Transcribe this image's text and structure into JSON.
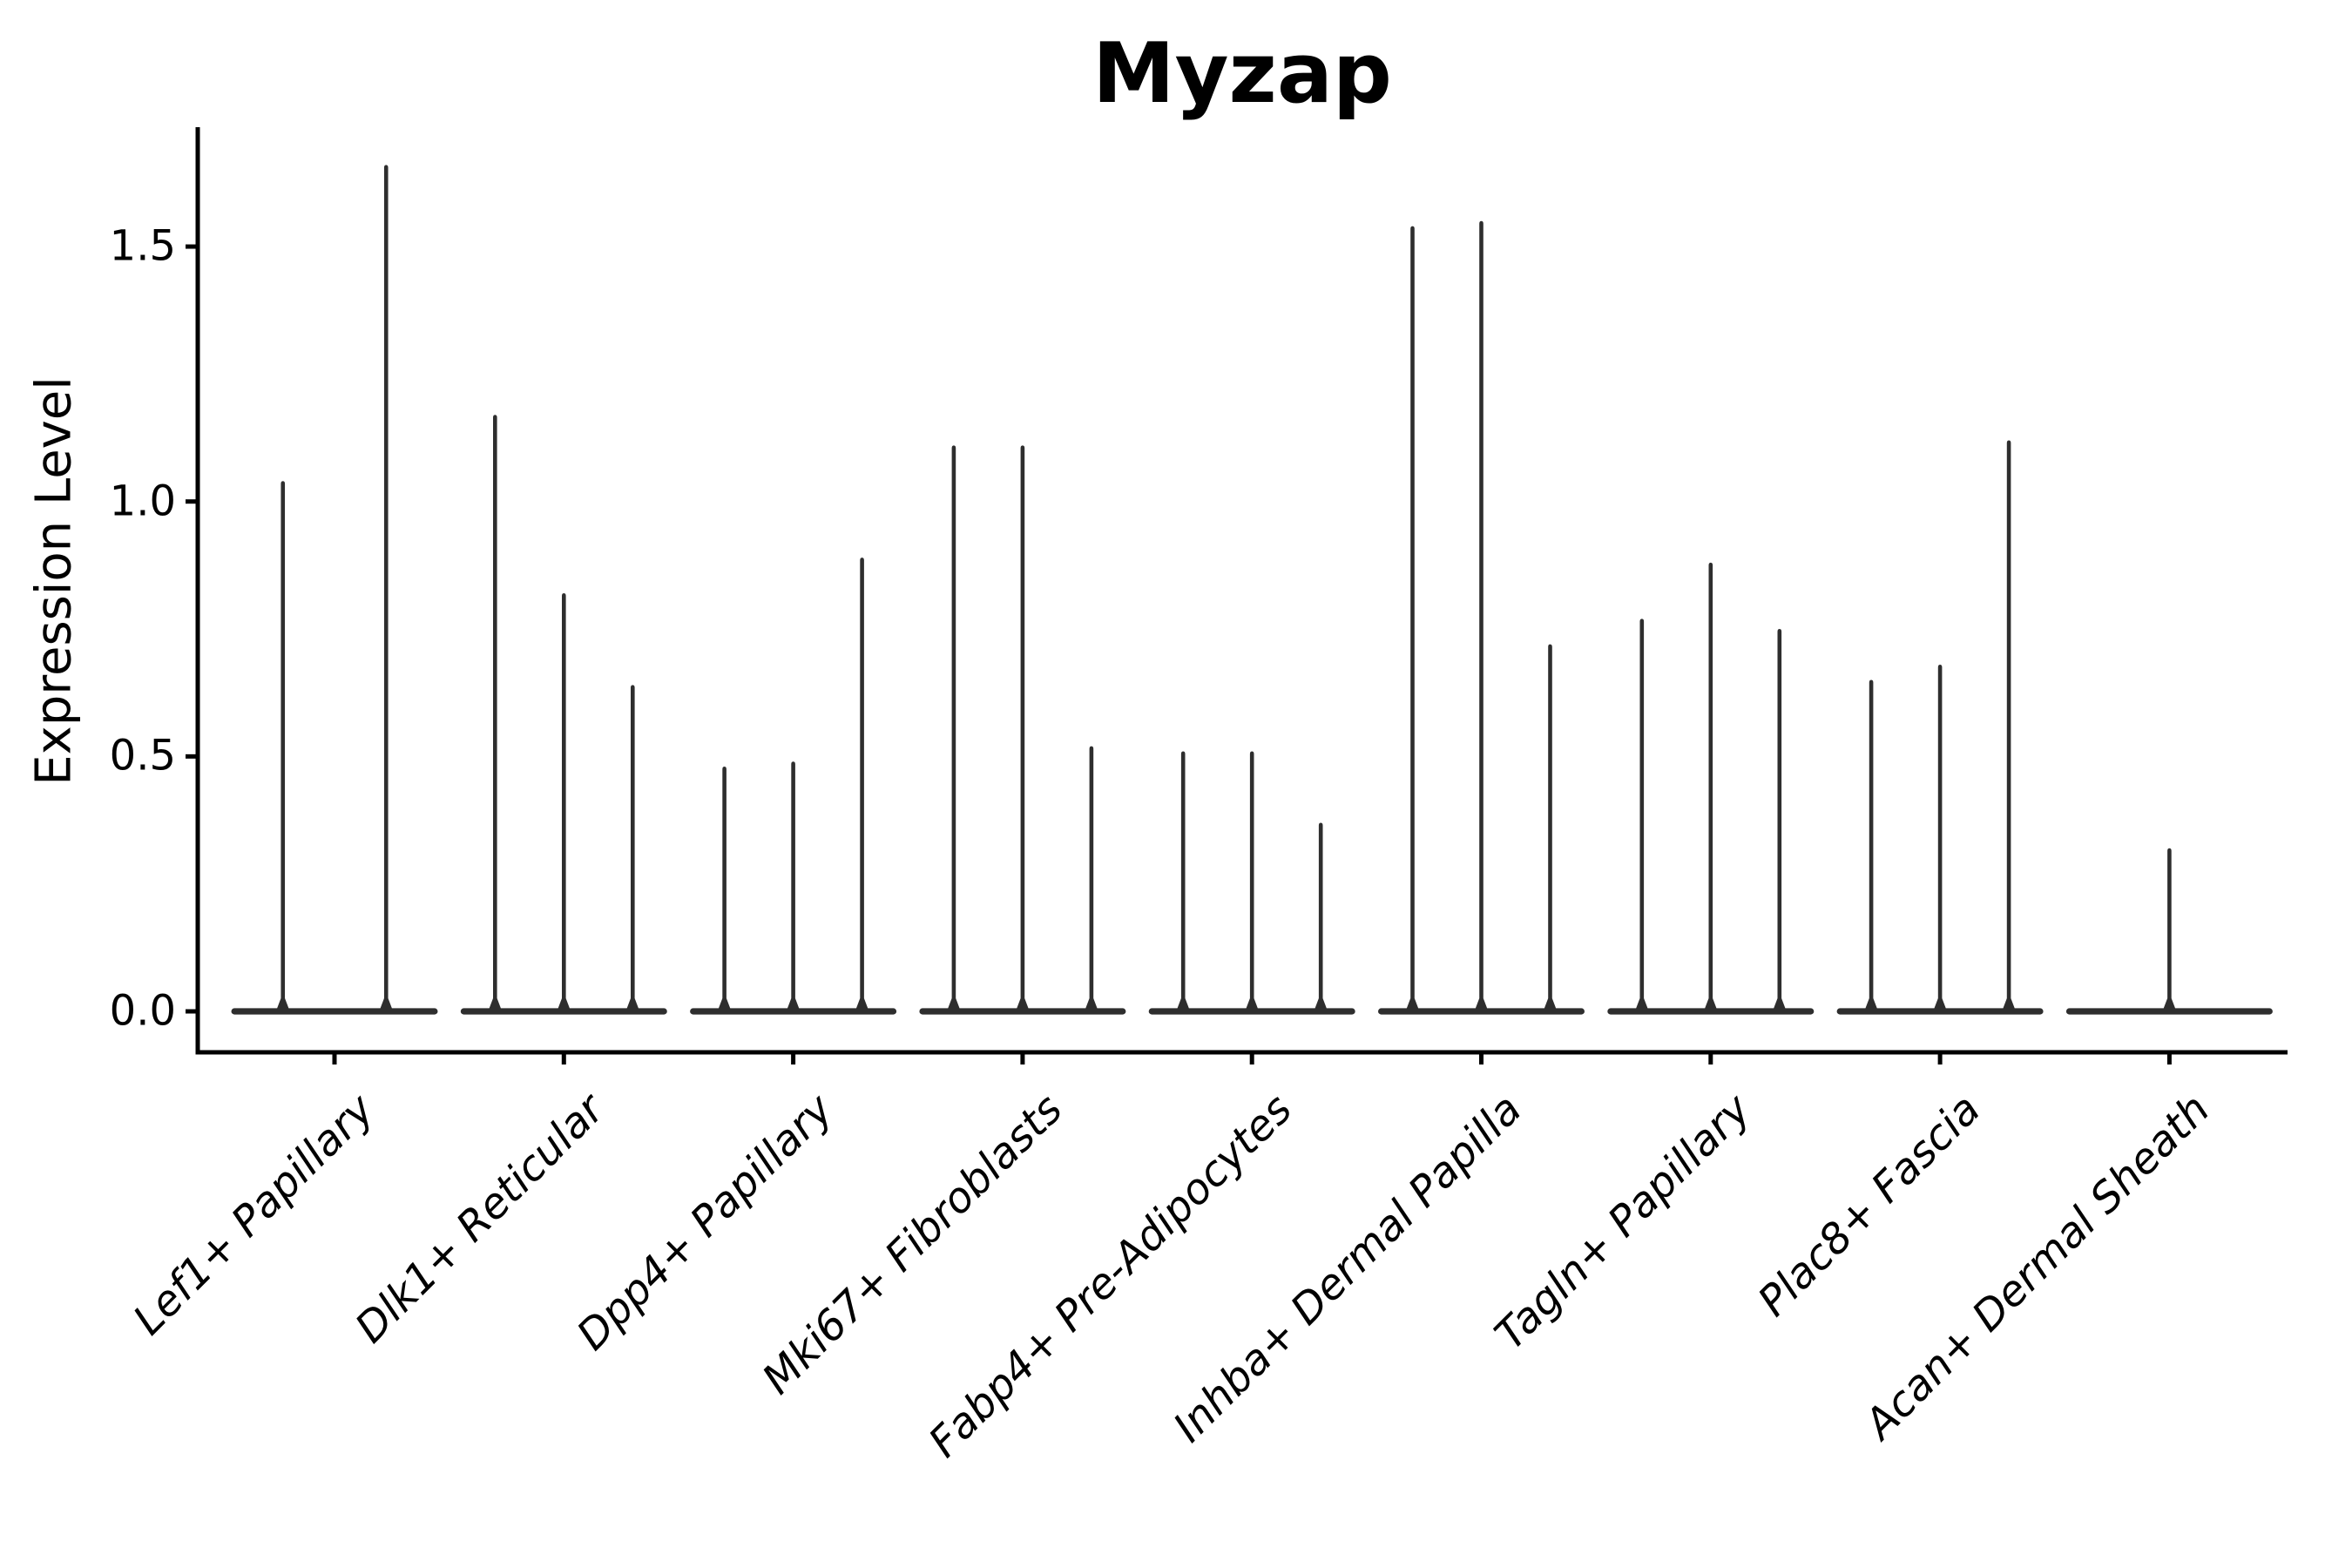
{
  "chart_data": {
    "type": "violin",
    "title": "Myzap",
    "ylabel": "Expression Level",
    "xlabel": "",
    "grid": false,
    "legend": null,
    "background_color": "#ffffff",
    "violin_color": "#2e2e2e",
    "axis_color": "#000000",
    "ytick_labels": [
      "0.0",
      "0.5",
      "1.0",
      "1.5"
    ],
    "ytick_values": [
      0.0,
      0.5,
      1.0,
      1.5
    ],
    "ylim": [
      -0.08,
      1.73
    ],
    "categories": [
      "Lef1+ Papillary",
      "Dlk1+ Reticular",
      "Dpp4+ Papillary",
      "Mki67+ Fibroblasts",
      "Fabp4+ Pre-Adipocytes",
      "Inhba+ Dermal Papilla",
      "Tagln+ Papillary",
      "Plac8+ Fascia",
      "Acan+ Dermal Sheath"
    ],
    "groups": [
      {
        "label": "Lef1+ Papillary",
        "violin_max_values": [
          1.04,
          1.66
        ]
      },
      {
        "label": "Dlk1+ Reticular",
        "violin_max_values": [
          1.17,
          0.82,
          0.64
        ]
      },
      {
        "label": "Dpp4+ Papillary",
        "violin_max_values": [
          0.48,
          0.49,
          0.89
        ]
      },
      {
        "label": "Mki67+ Fibroblasts",
        "violin_max_values": [
          1.11,
          1.11,
          0.52
        ]
      },
      {
        "label": "Fabp4+ Pre-Adipocytes",
        "violin_max_values": [
          0.51,
          0.51,
          0.37
        ]
      },
      {
        "label": "Inhba+ Dermal Papilla",
        "violin_max_values": [
          1.54,
          1.55,
          0.72
        ]
      },
      {
        "label": "Tagln+ Papillary",
        "violin_max_values": [
          0.77,
          0.88,
          0.75
        ]
      },
      {
        "label": "Plac8+ Fascia",
        "violin_max_values": [
          0.65,
          0.68,
          1.12
        ]
      },
      {
        "label": "Acan+ Dermal Sheath",
        "violin_max_values": [
          0.0,
          0.32,
          0.0
        ]
      }
    ]
  }
}
